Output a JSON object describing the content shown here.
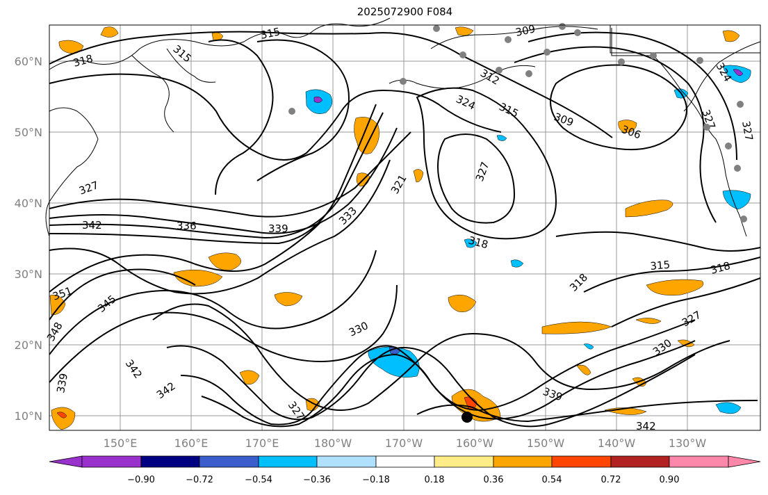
{
  "title": "2025072900 F084",
  "latitude_labels": [
    "60°N",
    "50°N",
    "40°N",
    "30°N",
    "20°N",
    "10°N"
  ],
  "longitude_labels": [
    "150°E",
    "160°E",
    "170°E",
    "180°W",
    "170°W",
    "160°W",
    "150°W",
    "140°W",
    "130°W"
  ],
  "contour_labels": [
    "315",
    "315",
    "318",
    "309",
    "312",
    "324",
    "315",
    "309",
    "306",
    "324",
    "327",
    "327",
    "327",
    "321",
    "327",
    "342",
    "336",
    "339",
    "333",
    "318",
    "318",
    "315",
    "318",
    "351",
    "345",
    "348",
    "330",
    "330",
    "327",
    "339",
    "342",
    "342",
    "327",
    "339",
    "342"
  ],
  "colorbar": {
    "tick_labels": [
      "−0.90",
      "−0.72",
      "−0.54",
      "−0.36",
      "−0.18",
      "0.18",
      "0.36",
      "0.54",
      "0.72",
      "0.90"
    ],
    "colors": [
      "#9932cc",
      "#000080",
      "#3a5fcd",
      "#00bfff",
      "#b0e2ff",
      "#ffffff",
      "#ffee88",
      "#ffa500",
      "#ff4500",
      "#b22222",
      "#ff88aa"
    ]
  },
  "colors": {
    "contour": "#000000",
    "coastline": "#000000",
    "gridline": "#999999",
    "station_marker": "#808080",
    "highlight_marker": "#000000"
  }
}
